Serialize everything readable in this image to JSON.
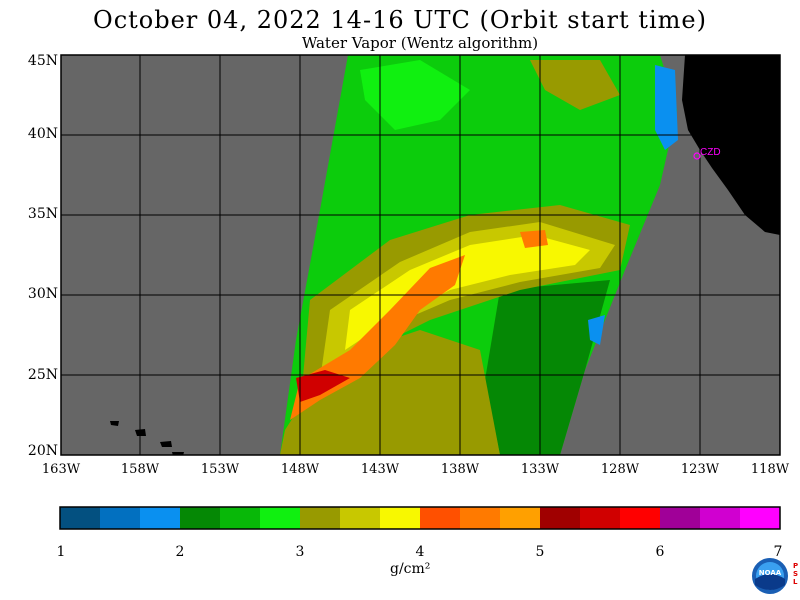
{
  "title": "October 04, 2022  14-16 UTC  (Orbit start time)",
  "subtitle": "Water Vapor (Wentz algorithm)",
  "map": {
    "lat_labels": [
      "45N",
      "40N",
      "35N",
      "30N",
      "25N",
      "20N"
    ],
    "lon_labels": [
      "163W",
      "158W",
      "153W",
      "148W",
      "143W",
      "138W",
      "133W",
      "128W",
      "123W",
      "118W"
    ],
    "station_label": "CZD",
    "colors": {
      "no_data": "#666666",
      "land": "#000000",
      "grid": "#000000",
      "station": "#ff00ff"
    }
  },
  "colorbar": {
    "tick_labels": [
      "1",
      "2",
      "3",
      "4",
      "5",
      "6",
      "7"
    ],
    "unit": "g/cm²",
    "colors": [
      "#035080",
      "#0270c0",
      "#0a90f0",
      "#058805",
      "#08b808",
      "#10f010",
      "#989a00",
      "#c8c800",
      "#f8f800",
      "#ff5000",
      "#ff7a00",
      "#ffa000",
      "#a00000",
      "#d00000",
      "#ff0000",
      "#a00098",
      "#d000d0",
      "#ff00ff"
    ]
  },
  "logo": {
    "text": "NOAA",
    "side_text": "P S L"
  }
}
